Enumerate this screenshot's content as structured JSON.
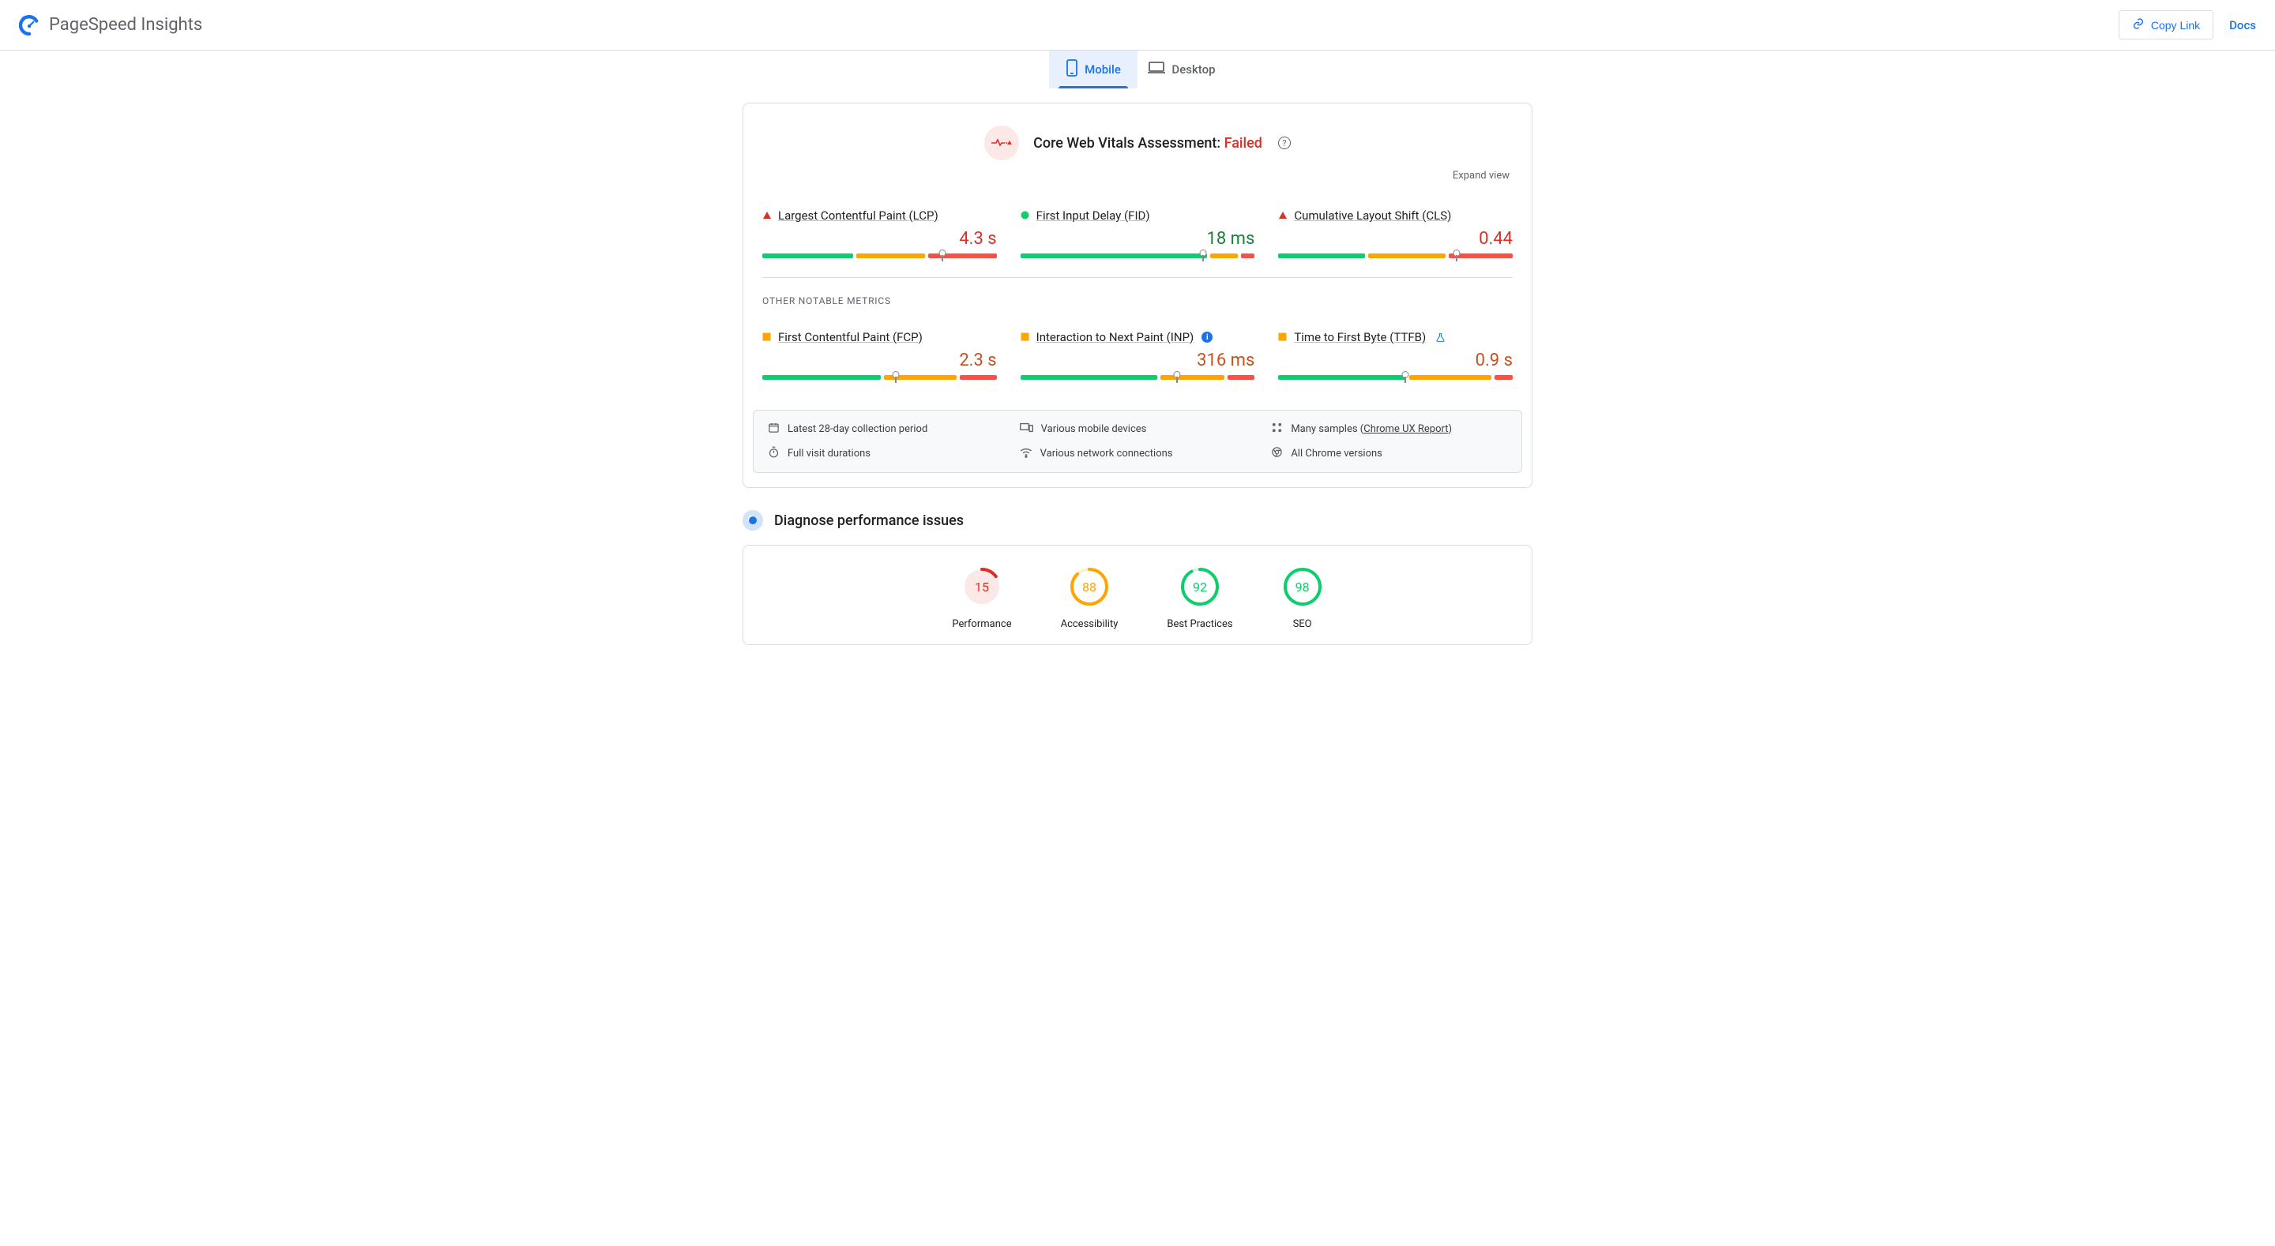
{
  "colors": {
    "red": "#d93025",
    "green": "#188038",
    "green_bar": "#0cce6b",
    "orange": "#ffa400",
    "orange_text": "#c5521f",
    "red_bar": "#ff4e42",
    "blue": "#1a73e8",
    "grey_text": "#5f6368"
  },
  "header": {
    "product_name": "PageSpeed Insights",
    "copy_link_label": "Copy Link",
    "docs_label": "Docs"
  },
  "tabs": {
    "mobile": "Mobile",
    "desktop": "Desktop",
    "active": "mobile"
  },
  "cwv": {
    "title_prefix": "Core Web Vitals Assessment: ",
    "status_text": "Failed",
    "expand_label": "Expand view"
  },
  "other_section_label": "OTHER NOTABLE METRICS",
  "metrics_core": [
    {
      "id": "lcp",
      "name": "Largest Contentful Paint (LCP)",
      "value": "4.3 s",
      "value_class": "val-red",
      "status_shape": "triangle-red",
      "dist": {
        "green": 40,
        "orange": 30,
        "red": 30
      },
      "marker_pct": 77
    },
    {
      "id": "fid",
      "name": "First Input Delay (FID)",
      "value": "18 ms",
      "value_class": "val-green",
      "status_shape": "circle-green",
      "dist": {
        "green": 82,
        "orange": 12,
        "red": 6
      },
      "marker_pct": 78
    },
    {
      "id": "cls",
      "name": "Cumulative Layout Shift (CLS)",
      "value": "0.44",
      "value_class": "val-red",
      "status_shape": "triangle-red",
      "dist": {
        "green": 38,
        "orange": 34,
        "red": 28
      },
      "marker_pct": 76
    }
  ],
  "metrics_other": [
    {
      "id": "fcp",
      "name": "First Contentful Paint (FCP)",
      "value": "2.3 s",
      "value_class": "val-orange",
      "status_shape": "square-orange",
      "dist": {
        "green": 52,
        "orange": 32,
        "red": 16
      },
      "marker_pct": 57,
      "trailing_icon": null
    },
    {
      "id": "inp",
      "name": "Interaction to Next Paint (INP)",
      "value": "316 ms",
      "value_class": "val-orange",
      "status_shape": "square-orange",
      "dist": {
        "green": 60,
        "orange": 28,
        "red": 12
      },
      "marker_pct": 67,
      "trailing_icon": "info"
    },
    {
      "id": "ttfb",
      "name": "Time to First Byte (TTFB)",
      "value": "0.9 s",
      "value_class": "val-orange",
      "status_shape": "square-orange",
      "dist": {
        "green": 56,
        "orange": 36,
        "red": 8
      },
      "marker_pct": 54,
      "trailing_icon": "flask"
    }
  ],
  "meta": {
    "period": "Latest 28-day collection period",
    "devices": "Various mobile devices",
    "samples_prefix": "Many samples (",
    "samples_link": "Chrome UX Report",
    "samples_suffix": ")",
    "durations": "Full visit durations",
    "network": "Various network connections",
    "chrome": "All Chrome versions"
  },
  "diagnose": {
    "title": "Diagnose performance issues"
  },
  "gauges": [
    {
      "id": "performance",
      "label": "Performance",
      "score": 15,
      "color": "#d93025",
      "bg": "#fce8e6"
    },
    {
      "id": "accessibility",
      "label": "Accessibility",
      "score": 88,
      "color": "#ffa400",
      "bg": "#fff"
    },
    {
      "id": "bestpractices",
      "label": "Best Practices",
      "score": 92,
      "color": "#0cce6b",
      "bg": "#fff"
    },
    {
      "id": "seo",
      "label": "SEO",
      "score": 98,
      "color": "#0cce6b",
      "bg": "#fff"
    }
  ]
}
